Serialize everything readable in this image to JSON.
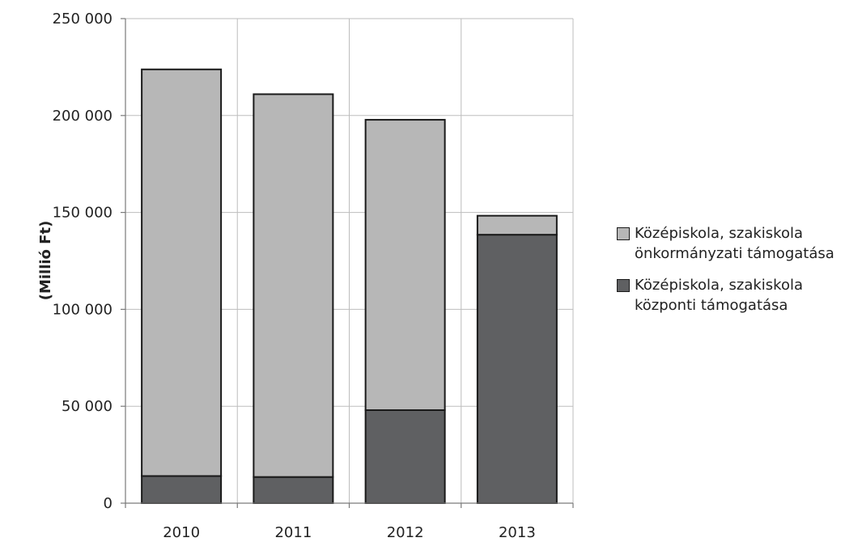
{
  "chart_data": {
    "type": "bar",
    "stacked": true,
    "title": "",
    "xlabel": "",
    "ylabel": "(Millió Ft)",
    "categories": [
      "2010",
      "2011",
      "2012",
      "2013"
    ],
    "ylim": [
      0,
      250000
    ],
    "yticks": [
      0,
      50000,
      100000,
      150000,
      200000,
      250000
    ],
    "ytick_labels": [
      "0",
      "50 000",
      "100 000",
      "150 000",
      "200 000",
      "250 000"
    ],
    "grid": true,
    "legend_position": "right",
    "series": [
      {
        "name": "Középiskola, szakiskola központi támogatása",
        "name_lines": [
          "Középiskola, szakiskola",
          "központi támogatása"
        ],
        "color": "#5f6062",
        "values": [
          14000,
          13500,
          48000,
          138500
        ]
      },
      {
        "name": "Középiskola, szakiskola önkormányzati támogatása",
        "name_lines": [
          "Középiskola, szakiskola",
          "önkormányzati támogatása"
        ],
        "color": "#b7b7b7",
        "values": [
          209800,
          197500,
          149800,
          9800
        ]
      }
    ]
  }
}
